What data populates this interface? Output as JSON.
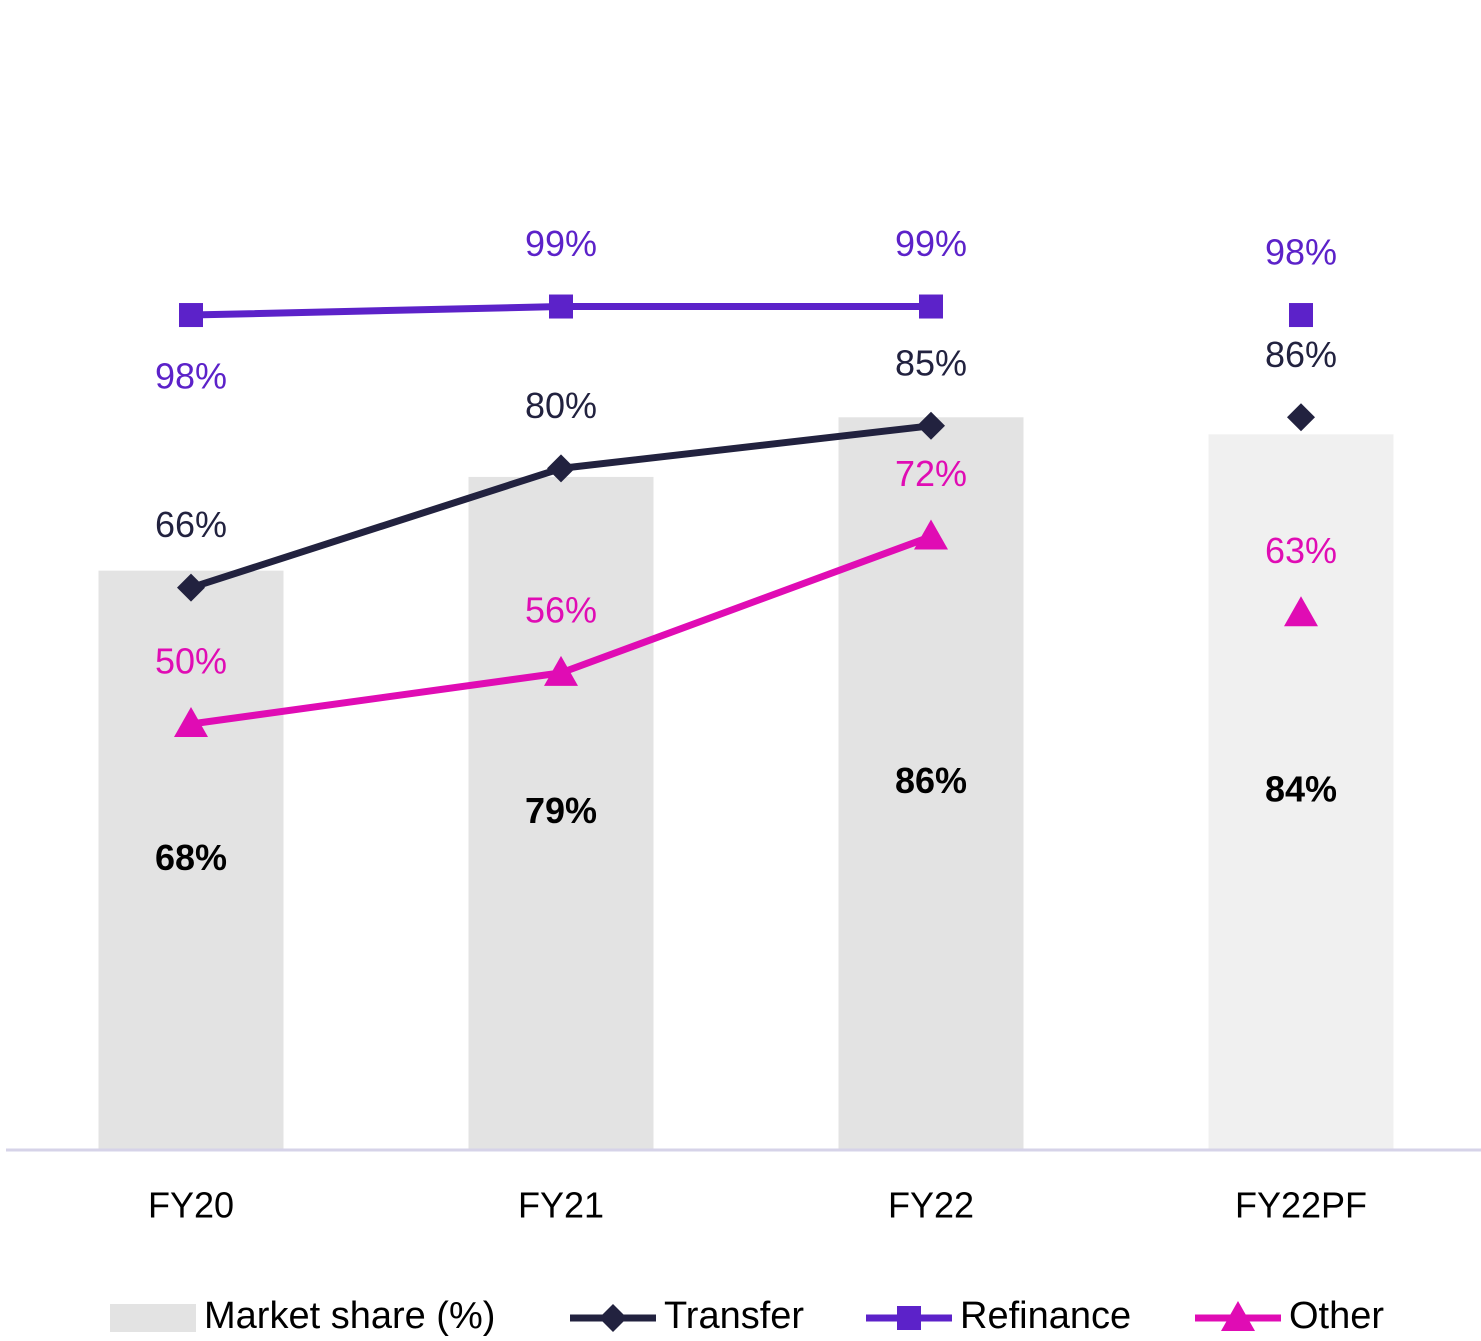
{
  "chart_data": {
    "type": "combo",
    "categories": [
      "FY20",
      "FY21",
      "FY22",
      "FY22PF"
    ],
    "connected": [
      true,
      true,
      true,
      false
    ],
    "ylim": [
      0,
      125
    ],
    "series": [
      {
        "name": "Market share (%)",
        "type": "bar",
        "colors": [
          "#e3e3e3",
          "#e3e3e3",
          "#e3e3e3",
          "#f0f0f0"
        ],
        "color": "#e3e3e3",
        "values": [
          68,
          79,
          86,
          84
        ],
        "value_labels": [
          "68%",
          "79%",
          "86%",
          "84%"
        ]
      },
      {
        "name": "Transfer",
        "type": "line",
        "marker": "diamond",
        "color": "#22223f",
        "values": [
          66,
          80,
          85,
          86
        ],
        "value_labels": [
          "66%",
          "80%",
          "85%",
          "86%"
        ],
        "label_position": [
          "above",
          "above",
          "above",
          "above"
        ]
      },
      {
        "name": "Refinance",
        "type": "line",
        "marker": "square",
        "color": "#5c22c9",
        "values": [
          98,
          99,
          99,
          98
        ],
        "value_labels": [
          "98%",
          "99%",
          "99%",
          "98%"
        ],
        "label_position": [
          "below",
          "above",
          "above",
          "above"
        ]
      },
      {
        "name": "Other",
        "type": "line",
        "marker": "triangle",
        "color": "#e00cb4",
        "values": [
          50,
          56,
          72,
          63
        ],
        "value_labels": [
          "50%",
          "56%",
          "72%",
          "63%"
        ],
        "label_position": [
          "above",
          "above",
          "above",
          "above"
        ]
      }
    ]
  }
}
